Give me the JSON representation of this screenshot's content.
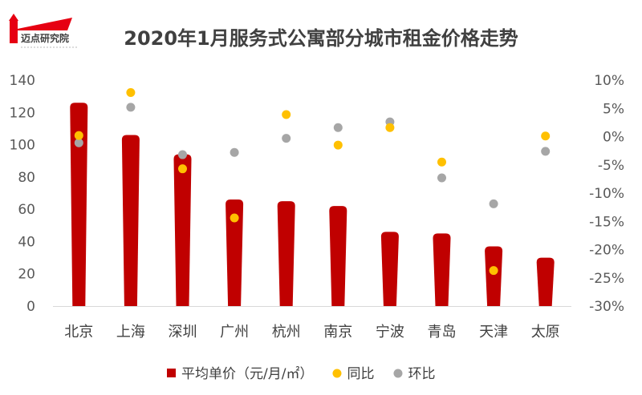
{
  "logo": {
    "name": "迈点研究院",
    "tagline": ""
  },
  "chart_data": {
    "type": "bar",
    "title": "2020年1月服务式公寓部分城市租金价格走势",
    "categories": [
      "北京",
      "上海",
      "深圳",
      "广州",
      "杭州",
      "南京",
      "宁波",
      "青岛",
      "天津",
      "太原"
    ],
    "series": [
      {
        "name": "平均单价（元/月/㎡）",
        "kind": "bar",
        "axis": "left",
        "color": "#C00000",
        "values": [
          126,
          106,
          94,
          66,
          65,
          62,
          46,
          45,
          37,
          30
        ]
      },
      {
        "name": "同比",
        "kind": "scatter",
        "axis": "right",
        "color": "#FFC000",
        "values": [
          0.2,
          7.8,
          -5.7,
          -14.4,
          3.9,
          -1.5,
          1.6,
          -4.5,
          -23.7,
          0.1
        ]
      },
      {
        "name": "环比",
        "kind": "scatter",
        "axis": "right",
        "color": "#A6A6A6",
        "values": [
          -1.1,
          5.2,
          -3.2,
          -2.8,
          -0.3,
          1.6,
          2.6,
          -7.3,
          -11.9,
          -2.6
        ]
      }
    ],
    "y_left": {
      "min": 0,
      "max": 140,
      "step": 20,
      "ticks": [
        "0",
        "20",
        "40",
        "60",
        "80",
        "100",
        "120",
        "140"
      ]
    },
    "y_right": {
      "min": -30,
      "max": 10,
      "step": 5,
      "ticks": [
        "-30%",
        "-25%",
        "-20%",
        "-15%",
        "-10%",
        "-5%",
        "0%",
        "5%",
        "10%"
      ]
    },
    "legend_position": "bottom",
    "grid": false
  }
}
